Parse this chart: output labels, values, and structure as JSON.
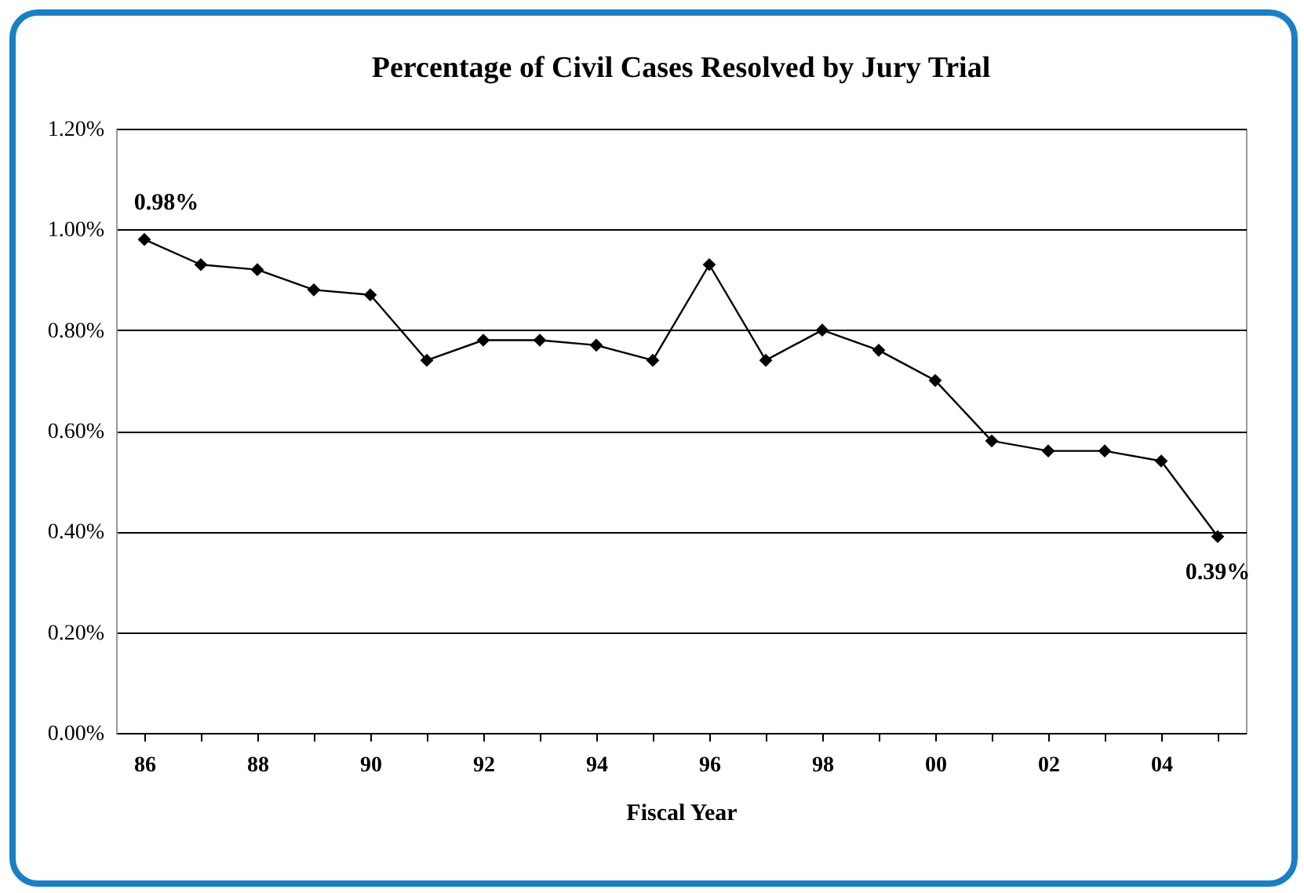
{
  "chart_data": {
    "type": "line",
    "title": "Percentage of Civil Cases Resolved by Jury Trial",
    "xlabel": "Fiscal Year",
    "categories": [
      "86",
      null,
      "88",
      null,
      "90",
      null,
      "92",
      null,
      "94",
      null,
      "96",
      null,
      "98",
      null,
      "00",
      null,
      "02",
      null,
      "04",
      null
    ],
    "series": [
      {
        "color": "#000000",
        "values": [
          0.98,
          0.93,
          0.92,
          0.88,
          0.87,
          0.74,
          0.78,
          0.78,
          0.77,
          0.74,
          0.93,
          0.74,
          0.8,
          0.76,
          0.7,
          0.58,
          0.56,
          0.56,
          0.54,
          0.39
        ],
        "value_labels": [
          "0.98%",
          null,
          null,
          null,
          null,
          null,
          null,
          null,
          null,
          null,
          null,
          null,
          null,
          null,
          null,
          null,
          null,
          null,
          null,
          "0.39%"
        ]
      }
    ],
    "ylim": [
      0,
      1.2
    ],
    "yticks": [
      {
        "value": 0,
        "label": "0.00%"
      },
      {
        "value": 0.2,
        "label": "0.20%"
      },
      {
        "value": 0.4,
        "label": "0.40%"
      },
      {
        "value": 0.6,
        "label": "0.60%"
      },
      {
        "value": 0.8,
        "label": "0.80%"
      },
      {
        "value": 1.0,
        "label": "1.00%"
      },
      {
        "value": 1.2,
        "label": "1.20%"
      }
    ],
    "grid": "y",
    "marker": "diamond",
    "line_style": "solid"
  }
}
